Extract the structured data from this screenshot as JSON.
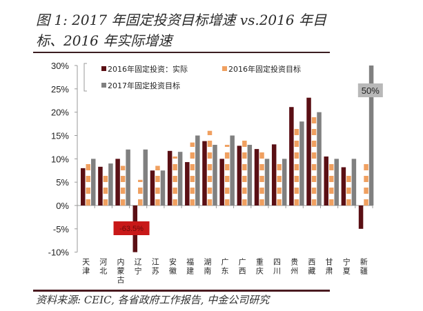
{
  "header": {
    "title": "图 1: 2017 年固定投资目标增速 vs.2016 年目标、2016 年实际增速"
  },
  "footer": {
    "source": "资料来源: CEIC, 各省政府工作报告, 中金公司研究"
  },
  "colors": {
    "actual_2016": "#5a0f14",
    "target_2016": "#f0a060",
    "target_2017": "#808080",
    "callout_red": "#c81818",
    "callout_gray": "#b8b8b8"
  },
  "chart_data": {
    "type": "bar",
    "title": "图 1: 2017 年固定投资目标增速 vs.2016 年目标、2016 年实际增速",
    "xlabel": "",
    "ylabel": "",
    "ylim": [
      -0.1,
      0.3
    ],
    "yticks": [
      "30%",
      "25%",
      "20%",
      "15%",
      "10%",
      "5%",
      "0%",
      "-5%",
      "-10%"
    ],
    "grid": false,
    "legend_position": "top-left inside",
    "categories": [
      "天津",
      "河北",
      "内蒙古",
      "辽宁",
      "江苏",
      "安徽",
      "福建",
      "湖南",
      "广东",
      "广西",
      "重庆",
      "四川",
      "贵州",
      "西藏",
      "甘肃",
      "宁夏",
      "新疆"
    ],
    "series": [
      {
        "name": "2016年固定投资：实际",
        "style": "solid",
        "values": [
          8.0,
          8.3,
          10.0,
          -63.5,
          7.5,
          11.7,
          9.3,
          13.8,
          10.0,
          12.8,
          12.1,
          13.1,
          21.1,
          23.1,
          10.5,
          8.2,
          -5.0
        ]
      },
      {
        "name": "2016年固定投资目标",
        "style": "dashed",
        "values": [
          10.0,
          7.0,
          8.5,
          5.5,
          8.5,
          10.5,
          13.5,
          16.0,
          13.0,
          14.0,
          12.0,
          10.0,
          17.0,
          20.0,
          10.0,
          7.5,
          10.0
        ]
      },
      {
        "name": "2017年固定投资目标",
        "style": "solid",
        "values": [
          10.0,
          9.0,
          12.0,
          12.0,
          7.5,
          11.5,
          15.0,
          13.0,
          15.0,
          13.0,
          10.0,
          10.0,
          18.0,
          20.0,
          10.0,
          10.0,
          50.0
        ]
      }
    ],
    "annotations": [
      {
        "category": "辽宁",
        "series": "2016年固定投资：实际",
        "text": "-63.5%"
      },
      {
        "category": "新疆",
        "series": "2017年固定投资目标",
        "text": "50%"
      }
    ],
    "unit": "%"
  }
}
